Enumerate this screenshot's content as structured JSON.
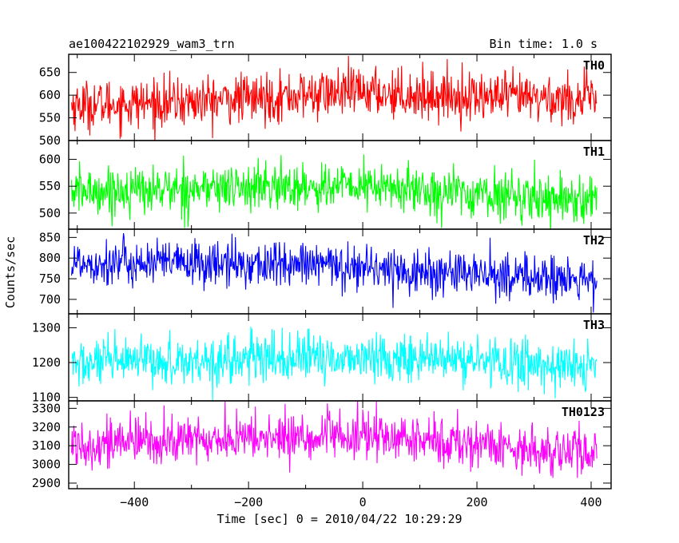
{
  "chart_data": {
    "type": "line",
    "title_left": "ae100422102929_wam3_trn",
    "title_right": "Bin time: 1.0 s",
    "xlabel": "Time [sec] 0 = 2010/04/22 10:29:29",
    "ylabel": "Counts/sec",
    "xlim": [
      -515,
      435
    ],
    "x_ticks": [
      -400,
      -200,
      0,
      200,
      400
    ],
    "x_tick_labels": [
      "−400",
      "−200",
      "0",
      "200",
      "400"
    ],
    "x_range_data": [
      -510,
      410
    ],
    "bin_time_s": 1.0,
    "panels": [
      {
        "name": "TH0",
        "color": "#ff0000",
        "ylim": [
          500,
          690
        ],
        "y_ticks": [
          500,
          550,
          600,
          650
        ],
        "y_tick_labels": [
          "500",
          "550",
          "600",
          "650"
        ],
        "trend": [
          [
            -510,
            578
          ],
          [
            -300,
            585
          ],
          [
            -100,
            600
          ],
          [
            0,
            608
          ],
          [
            100,
            600
          ],
          [
            250,
            595
          ],
          [
            410,
            590
          ]
        ],
        "noise_sigma": 27
      },
      {
        "name": "TH1",
        "color": "#00ff00",
        "ylim": [
          470,
          635
        ],
        "y_ticks": [
          500,
          550,
          600
        ],
        "y_tick_labels": [
          "500",
          "550",
          "600"
        ],
        "trend": [
          [
            -510,
            540
          ],
          [
            -200,
            548
          ],
          [
            0,
            550
          ],
          [
            200,
            535
          ],
          [
            410,
            525
          ]
        ],
        "noise_sigma": 22
      },
      {
        "name": "TH2",
        "color": "#0000ff",
        "ylim": [
          665,
          870
        ],
        "y_ticks": [
          700,
          750,
          800,
          850
        ],
        "y_tick_labels": [
          "700",
          "750",
          "800",
          "850"
        ],
        "trend": [
          [
            -510,
            790
          ],
          [
            -200,
            785
          ],
          [
            0,
            780
          ],
          [
            100,
            765
          ],
          [
            300,
            755
          ],
          [
            410,
            740
          ]
        ],
        "noise_sigma": 28
      },
      {
        "name": "TH3",
        "color": "#00ffff",
        "ylim": [
          1090,
          1340
        ],
        "y_ticks": [
          1100,
          1200,
          1300
        ],
        "y_tick_labels": [
          "1100",
          "1200",
          "1300"
        ],
        "trend": [
          [
            -510,
            1195
          ],
          [
            -200,
            1210
          ],
          [
            0,
            1215
          ],
          [
            200,
            1205
          ],
          [
            410,
            1185
          ]
        ],
        "noise_sigma": 35
      },
      {
        "name": "TH0123",
        "color": "#ff00ff",
        "ylim": [
          2870,
          3340
        ],
        "y_ticks": [
          2900,
          3000,
          3100,
          3200,
          3300
        ],
        "y_tick_labels": [
          "2900",
          "3000",
          "3100",
          "3200",
          "3300"
        ],
        "trend": [
          [
            -510,
            3110
          ],
          [
            -200,
            3140
          ],
          [
            0,
            3150
          ],
          [
            200,
            3110
          ],
          [
            410,
            3050
          ]
        ],
        "noise_sigma": 65
      }
    ]
  }
}
